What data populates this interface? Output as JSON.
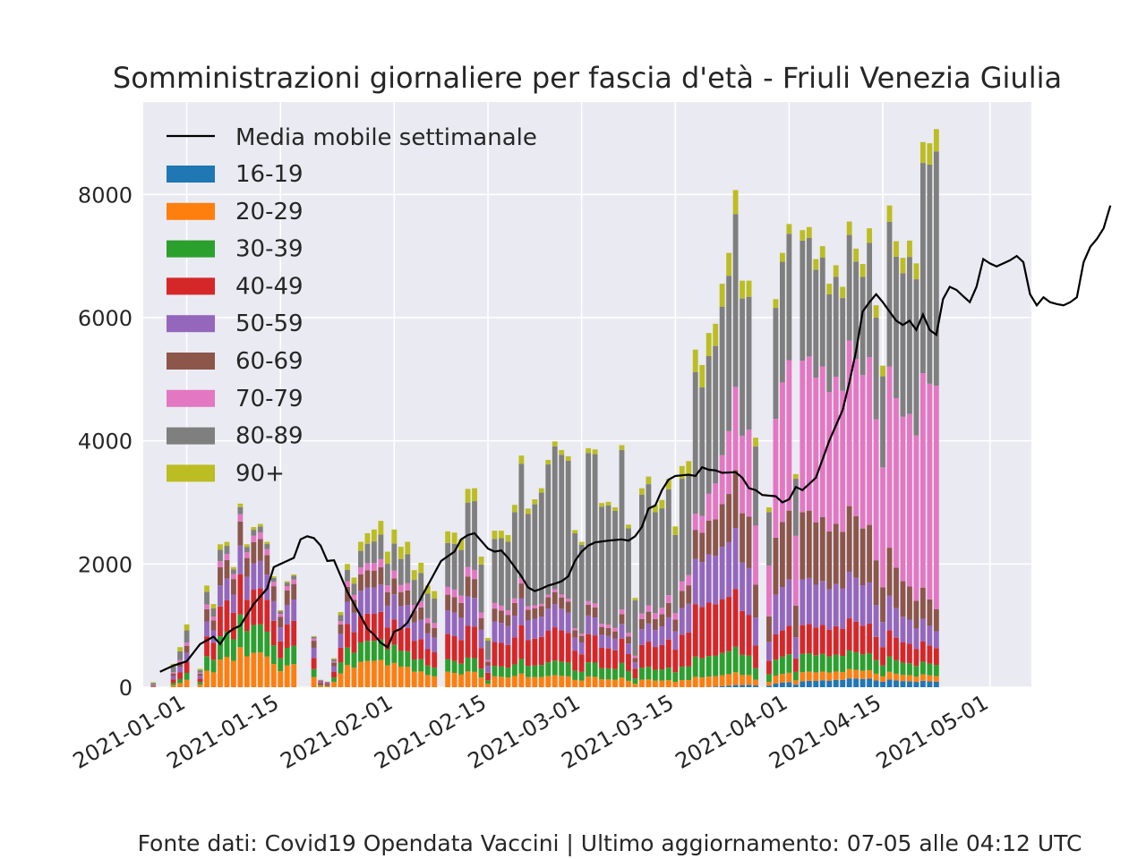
{
  "chart_data": {
    "type": "bar",
    "stacked": true,
    "title": "Somministrazioni giornaliere per fascia d'età - Friuli Venezia Giulia",
    "xlabel": "",
    "ylabel": "",
    "ylim": [
      0,
      9500
    ],
    "yticks": [
      "0",
      "2000",
      "4000",
      "6000",
      "8000"
    ],
    "xticks": [
      "2021-01-01",
      "2021-01-15",
      "2021-02-01",
      "2021-02-15",
      "2021-03-01",
      "2021-03-15",
      "2021-04-01",
      "2021-04-15",
      "2021-05-01"
    ],
    "x_start": "2020-12-27",
    "x_end": "2021-05-06",
    "grid": true,
    "legend_position": "top-left",
    "groups": [
      "16-19",
      "20-29",
      "30-39",
      "40-49",
      "50-59",
      "60-69",
      "70-79",
      "80-89",
      "90+"
    ],
    "colors": [
      "#1f77b4",
      "#ff7f0e",
      "#2ca02c",
      "#d62728",
      "#9467bd",
      "#8c564b",
      "#e377c2",
      "#7f7f7f",
      "#bcbd22"
    ],
    "totals": [
      80,
      0,
      0,
      380,
      650,
      1020,
      0,
      300,
      1650,
      1350,
      2320,
      2360,
      1950,
      2980,
      2320,
      2600,
      2650,
      2360,
      1800,
      1250,
      1720,
      1830,
      0,
      0,
      830,
      120,
      90,
      470,
      1220,
      2000,
      1780,
      2360,
      2500,
      2560,
      2700,
      2200,
      2560,
      2280,
      2360,
      1900,
      2020,
      1650,
      1560,
      0,
      2530,
      2510,
      2400,
      3220,
      3230,
      2120,
      800,
      2540,
      2540,
      2470,
      2960,
      3760,
      2900,
      3050,
      3230,
      3690,
      3990,
      3850,
      3750,
      2550,
      2360,
      3880,
      3860,
      2990,
      3010,
      2920,
      3930,
      2640,
      1450,
      3230,
      3420,
      2960,
      3040,
      3380,
      2610,
      3590,
      3670,
      5480,
      5230,
      5750,
      5900,
      6550,
      7050,
      8070,
      6600,
      6600,
      4050,
      0,
      2920,
      6300,
      7050,
      7520,
      3460,
      7420,
      7470,
      6950,
      7160,
      6550,
      6850,
      6500,
      7560,
      7120,
      6870,
      7450,
      6200,
      5220,
      7820,
      7240,
      6970,
      7250,
      6880,
      8850,
      8830,
      9060
    ],
    "fractions": [
      [
        0.0,
        0.04,
        0.06,
        0.14,
        0.14,
        0.1,
        0.06,
        0.31,
        0.15
      ],
      [
        0.0,
        0.22,
        0.18,
        0.22,
        0.15,
        0.13,
        0.04,
        0.04,
        0.02
      ],
      [
        0.0,
        0.2,
        0.16,
        0.22,
        0.2,
        0.14,
        0.04,
        0.03,
        0.01
      ],
      [
        0.0,
        0.16,
        0.12,
        0.16,
        0.16,
        0.1,
        0.05,
        0.16,
        0.09
      ],
      [
        0.0,
        0.08,
        0.07,
        0.16,
        0.15,
        0.1,
        0.05,
        0.32,
        0.07
      ],
      [
        0.0,
        0.05,
        0.06,
        0.14,
        0.1,
        0.05,
        0.01,
        0.57,
        0.02
      ],
      [
        0.0,
        0.04,
        0.06,
        0.1,
        0.06,
        0.04,
        0.02,
        0.66,
        0.02
      ],
      [
        0.0,
        0.03,
        0.06,
        0.16,
        0.14,
        0.09,
        0.05,
        0.4,
        0.07
      ],
      [
        0.01,
        0.02,
        0.04,
        0.06,
        0.1,
        0.15,
        0.32,
        0.28,
        0.02
      ],
      [
        0.02,
        0.02,
        0.04,
        0.07,
        0.1,
        0.14,
        0.36,
        0.22,
        0.03
      ],
      [
        0.01,
        0.01,
        0.02,
        0.03,
        0.03,
        0.04,
        0.4,
        0.42,
        0.04
      ]
    ],
    "moving_average": [
      [
        1,
        250
      ],
      [
        3,
        350
      ],
      [
        5,
        420
      ],
      [
        7,
        700
      ],
      [
        9,
        820
      ],
      [
        10,
        700
      ],
      [
        11,
        870
      ],
      [
        12,
        950
      ],
      [
        13,
        1000
      ],
      [
        15,
        1350
      ],
      [
        17,
        1600
      ],
      [
        18,
        1950
      ],
      [
        20,
        2050
      ],
      [
        21,
        2100
      ],
      [
        22,
        2400
      ],
      [
        23,
        2450
      ],
      [
        24,
        2420
      ],
      [
        25,
        2300
      ],
      [
        26,
        2050
      ],
      [
        27,
        2060
      ],
      [
        29,
        1550
      ],
      [
        31,
        1150
      ],
      [
        32,
        950
      ],
      [
        33,
        850
      ],
      [
        34,
        720
      ],
      [
        35,
        650
      ],
      [
        36,
        900
      ],
      [
        37,
        950
      ],
      [
        38,
        1050
      ],
      [
        40,
        1450
      ],
      [
        42,
        1850
      ],
      [
        43,
        2050
      ],
      [
        45,
        2200
      ],
      [
        46,
        2400
      ],
      [
        47,
        2470
      ],
      [
        48,
        2500
      ],
      [
        50,
        2250
      ],
      [
        51,
        2200
      ],
      [
        52,
        2220
      ],
      [
        53,
        2100
      ],
      [
        55,
        1800
      ],
      [
        56,
        1620
      ],
      [
        57,
        1560
      ],
      [
        58,
        1600
      ],
      [
        59,
        1650
      ],
      [
        60,
        1680
      ],
      [
        61,
        1720
      ],
      [
        62,
        1800
      ],
      [
        63,
        2050
      ],
      [
        64,
        2200
      ],
      [
        65,
        2300
      ],
      [
        66,
        2350
      ],
      [
        68,
        2380
      ],
      [
        70,
        2400
      ],
      [
        71,
        2380
      ],
      [
        72,
        2450
      ],
      [
        73,
        2600
      ],
      [
        74,
        2900
      ],
      [
        75,
        2950
      ],
      [
        76,
        3200
      ],
      [
        77,
        3370
      ],
      [
        78,
        3430
      ],
      [
        80,
        3450
      ],
      [
        81,
        3430
      ],
      [
        82,
        3570
      ],
      [
        83,
        3530
      ],
      [
        84,
        3520
      ],
      [
        85,
        3480
      ],
      [
        87,
        3490
      ],
      [
        88,
        3400
      ],
      [
        89,
        3230
      ],
      [
        90,
        3200
      ],
      [
        91,
        3120
      ],
      [
        93,
        3100
      ],
      [
        94,
        3000
      ],
      [
        95,
        3050
      ],
      [
        96,
        3250
      ],
      [
        97,
        3200
      ],
      [
        98,
        3300
      ],
      [
        99,
        3400
      ],
      [
        100,
        3700
      ],
      [
        101,
        4000
      ],
      [
        102,
        4250
      ],
      [
        103,
        4500
      ],
      [
        104,
        4950
      ],
      [
        105,
        5450
      ],
      [
        106,
        6100
      ],
      [
        107,
        6250
      ],
      [
        108,
        6380
      ],
      [
        109,
        6250
      ],
      [
        110,
        6100
      ],
      [
        111,
        5950
      ],
      [
        112,
        5880
      ],
      [
        113,
        5950
      ],
      [
        114,
        5800
      ],
      [
        115,
        6050
      ],
      [
        116,
        5800
      ],
      [
        117,
        5720
      ],
      [
        118,
        6300
      ],
      [
        119,
        6500
      ],
      [
        120,
        6450
      ],
      [
        121,
        6350
      ],
      [
        122,
        6250
      ],
      [
        123,
        6500
      ],
      [
        124,
        6950
      ],
      [
        125,
        6880
      ],
      [
        126,
        6830
      ],
      [
        127,
        6880
      ],
      [
        128,
        6930
      ],
      [
        129,
        7000
      ],
      [
        130,
        6900
      ],
      [
        131,
        6380
      ],
      [
        132,
        6200
      ],
      [
        133,
        6330
      ],
      [
        134,
        6250
      ],
      [
        135,
        6220
      ],
      [
        136,
        6200
      ],
      [
        137,
        6250
      ],
      [
        138,
        6330
      ],
      [
        139,
        6900
      ],
      [
        140,
        7150
      ],
      [
        141,
        7280
      ],
      [
        142,
        7450
      ],
      [
        143,
        7820
      ]
    ]
  },
  "legend": {
    "moving_average_label": "Media mobile settimanale",
    "items": [
      "16-19",
      "20-29",
      "30-39",
      "40-49",
      "50-59",
      "60-69",
      "70-79",
      "80-89",
      "90+"
    ]
  },
  "footer": "Fonte dati: Covid19 Opendata Vaccini | Ultimo aggiornamento: 07-05 alle 04:12 UTC"
}
